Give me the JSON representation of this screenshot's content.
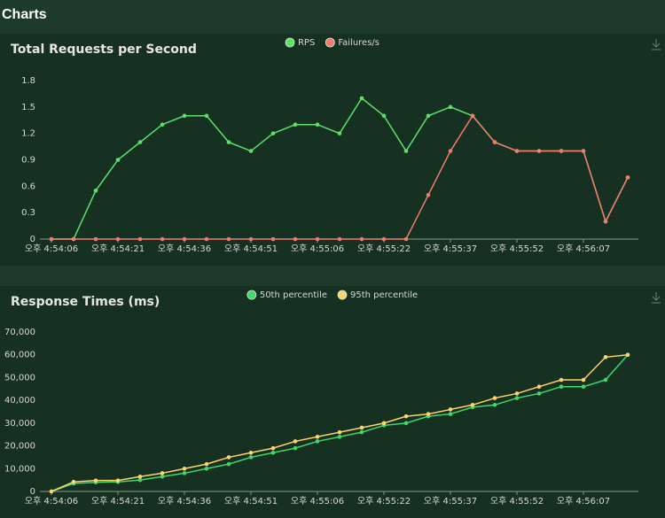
{
  "header": "Charts",
  "chart_data": [
    {
      "type": "line",
      "title": "Total Requests per Second",
      "categories": [
        "오후 4:54:06",
        null,
        null,
        "오후 4:54:21",
        null,
        null,
        "오후 4:54:36",
        null,
        null,
        "오후 4:54:51",
        null,
        null,
        "오후 4:55:06",
        null,
        null,
        "오후 4:55:22",
        null,
        null,
        "오후 4:55:37",
        null,
        null,
        "오후 4:55:52",
        null,
        null,
        "오후 4:56:07",
        null,
        null
      ],
      "series": [
        {
          "name": "RPS",
          "color": "#5ee06b",
          "values": [
            0,
            0,
            0.55,
            0.9,
            1.1,
            1.3,
            1.4,
            1.4,
            1.1,
            1.0,
            1.2,
            1.3,
            1.3,
            1.2,
            1.6,
            1.4,
            1.0,
            1.4,
            1.5,
            1.4,
            1.1,
            1.0,
            1.0,
            1.0,
            1.0,
            0.2,
            0.7
          ]
        },
        {
          "name": "Failures/s",
          "color": "#f07c6e",
          "values": [
            0,
            0,
            0,
            0,
            0,
            0,
            0,
            0,
            0,
            0,
            0,
            0,
            0,
            0,
            0,
            0,
            0,
            0.5,
            1.0,
            1.4,
            1.1,
            1.0,
            1.0,
            1.0,
            1.0,
            0.2,
            0.7
          ]
        }
      ],
      "ylim": [
        0,
        1.8
      ],
      "yticks": [
        0,
        0.3,
        0.6,
        0.9,
        1.2,
        1.5,
        1.8
      ]
    },
    {
      "type": "line",
      "title": "Response Times (ms)",
      "categories": [
        "오후 4:54:06",
        null,
        null,
        "오후 4:54:21",
        null,
        null,
        "오후 4:54:36",
        null,
        null,
        "오후 4:54:51",
        null,
        null,
        "오후 4:55:06",
        null,
        null,
        "오후 4:55:22",
        null,
        null,
        "오후 4:55:37",
        null,
        null,
        "오후 4:55:52",
        null,
        null,
        "오후 4:56:07",
        null,
        null
      ],
      "series": [
        {
          "name": "50th percentile",
          "color": "#3fd86a",
          "values": [
            0,
            3500,
            4000,
            4200,
            5000,
            6500,
            8000,
            10000,
            12000,
            15000,
            17000,
            19000,
            22000,
            24000,
            26000,
            29000,
            30000,
            33000,
            34000,
            37000,
            38000,
            41000,
            43000,
            46000,
            46000,
            49000,
            60000
          ]
        },
        {
          "name": "95th percentile",
          "color": "#ffd36b",
          "values": [
            0,
            4200,
            4800,
            4800,
            6500,
            8000,
            10000,
            12000,
            15000,
            17000,
            19000,
            22000,
            24000,
            26000,
            28000,
            30000,
            33000,
            34000,
            36000,
            38000,
            41000,
            43000,
            46000,
            49000,
            49000,
            59000,
            60000
          ]
        }
      ],
      "ylim": [
        0,
        70000
      ],
      "yticks": [
        0,
        {
          "value": 10000,
          "label": "10,000"
        },
        {
          "value": 20000,
          "label": "20,000"
        },
        {
          "value": 30000,
          "label": "30,000"
        },
        {
          "value": 40000,
          "label": "40,000"
        },
        {
          "value": 50000,
          "label": "50,000"
        },
        {
          "value": 60000,
          "label": "60,000"
        },
        {
          "value": 70000,
          "label": "70,000"
        }
      ]
    }
  ]
}
